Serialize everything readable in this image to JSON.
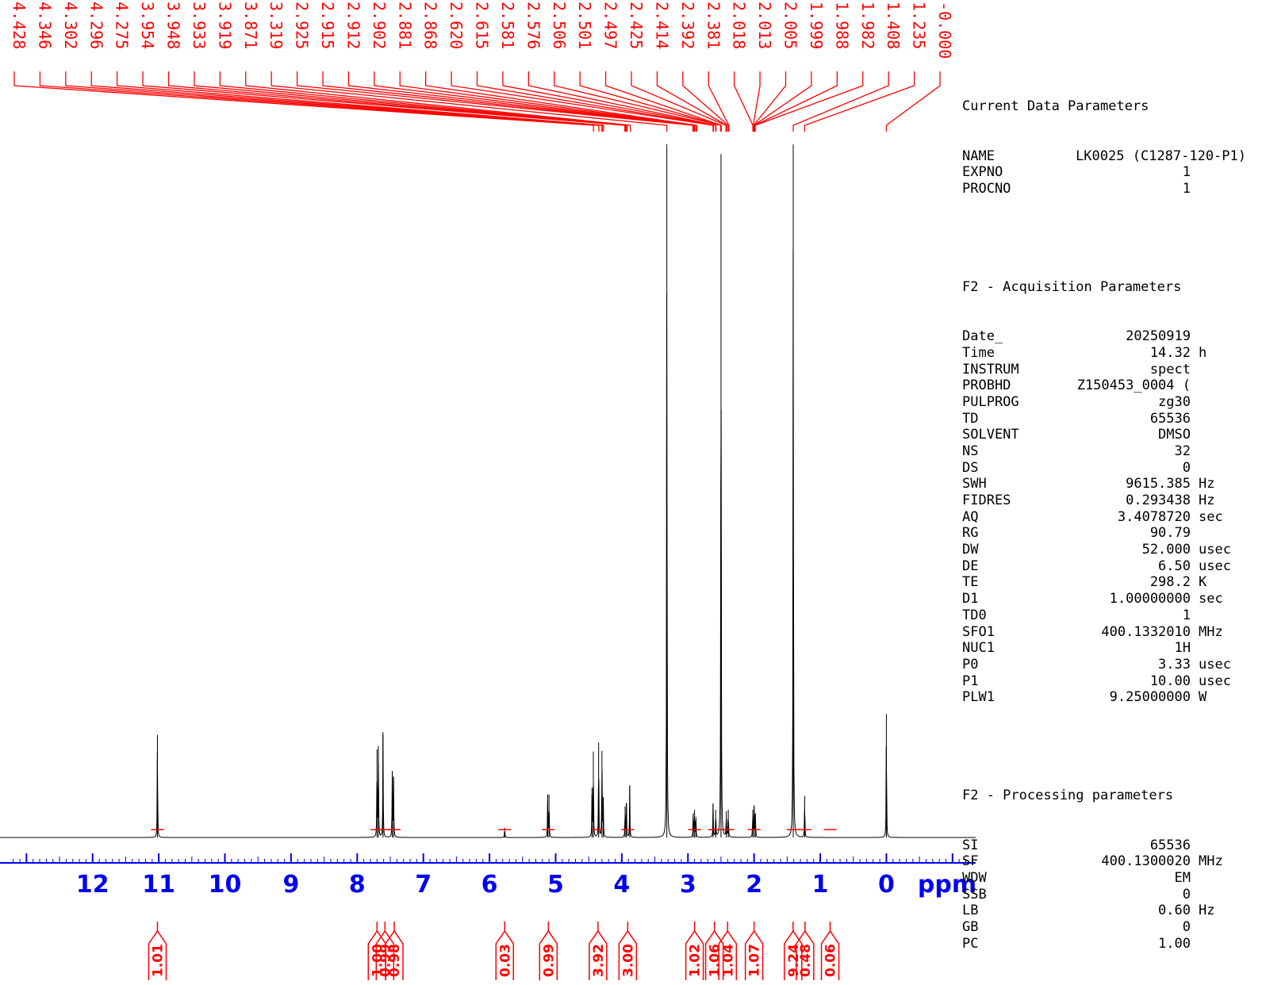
{
  "chart_data": {
    "type": "line",
    "xlabel": "ppm",
    "xlim": [
      13.4,
      -1.35
    ],
    "x_ticks": [
      12,
      11,
      10,
      9,
      8,
      7,
      6,
      5,
      4,
      3,
      2,
      1,
      0
    ],
    "peak_labels": [
      "4.428",
      "4.346",
      "4.302",
      "4.296",
      "4.275",
      "3.954",
      "3.948",
      "3.933",
      "3.919",
      "3.871",
      "3.319",
      "2.925",
      "2.915",
      "2.912",
      "2.902",
      "2.881",
      "2.868",
      "2.620",
      "2.615",
      "2.581",
      "2.576",
      "2.506",
      "2.501",
      "2.497",
      "2.425",
      "2.414",
      "2.392",
      "2.381",
      "2.018",
      "2.013",
      "2.005",
      "1.999",
      "1.988",
      "1.982",
      "1.408",
      "1.235",
      "-0.000"
    ],
    "peaks": [
      {
        "x": 11.02,
        "h": 0.148
      },
      {
        "x": 7.7,
        "h": 0.127
      },
      {
        "x": 7.68,
        "h": 0.132
      },
      {
        "x": 7.61,
        "h": 0.152
      },
      {
        "x": 7.47,
        "h": 0.096
      },
      {
        "x": 7.45,
        "h": 0.088
      },
      {
        "x": 5.77,
        "h": 0.014
      },
      {
        "x": 5.12,
        "h": 0.062
      },
      {
        "x": 5.1,
        "h": 0.062
      },
      {
        "x": 4.45,
        "h": 0.072
      },
      {
        "x": 4.43,
        "h": 0.124
      },
      {
        "x": 4.35,
        "h": 0.137
      },
      {
        "x": 4.3,
        "h": 0.125
      },
      {
        "x": 4.28,
        "h": 0.055
      },
      {
        "x": 3.95,
        "h": 0.045
      },
      {
        "x": 3.93,
        "h": 0.05
      },
      {
        "x": 3.88,
        "h": 0.075
      },
      {
        "x": 3.319,
        "h": 1.0
      },
      {
        "x": 2.92,
        "h": 0.035
      },
      {
        "x": 2.9,
        "h": 0.04
      },
      {
        "x": 2.88,
        "h": 0.03
      },
      {
        "x": 2.62,
        "h": 0.048
      },
      {
        "x": 2.58,
        "h": 0.04
      },
      {
        "x": 2.5,
        "h": 0.986
      },
      {
        "x": 2.42,
        "h": 0.038
      },
      {
        "x": 2.39,
        "h": 0.04
      },
      {
        "x": 2.02,
        "h": 0.04
      },
      {
        "x": 2.0,
        "h": 0.045
      },
      {
        "x": 1.98,
        "h": 0.035
      },
      {
        "x": 1.408,
        "h": 1.0
      },
      {
        "x": 1.235,
        "h": 0.06
      },
      {
        "x": 0.0,
        "h": 0.178
      }
    ],
    "integrals": [
      {
        "x": 11.02,
        "value": "1.01"
      },
      {
        "x": 7.7,
        "value": "1.00"
      },
      {
        "x": 7.58,
        "value": "0.99"
      },
      {
        "x": 7.44,
        "value": "0.98"
      },
      {
        "x": 5.77,
        "value": "0.03"
      },
      {
        "x": 5.11,
        "value": "0.99"
      },
      {
        "x": 4.36,
        "value": "3.92"
      },
      {
        "x": 3.91,
        "value": "3.00"
      },
      {
        "x": 2.9,
        "value": "1.02"
      },
      {
        "x": 2.6,
        "value": "1.06"
      },
      {
        "x": 2.4,
        "value": "1.04"
      },
      {
        "x": 2.0,
        "value": "1.07"
      },
      {
        "x": 1.41,
        "value": "9.24"
      },
      {
        "x": 1.23,
        "value": "0.48"
      },
      {
        "x": 0.85,
        "value": "0.06"
      }
    ]
  },
  "params": {
    "current": {
      "header": "Current Data Parameters",
      "rows": [
        {
          "name": "NAME",
          "value": "LK0025 (C1287-120-P1)",
          "unit": ""
        },
        {
          "name": "EXPNO",
          "value": "1",
          "unit": ""
        },
        {
          "name": "PROCNO",
          "value": "1",
          "unit": ""
        }
      ]
    },
    "acquisition": {
      "header": "F2 - Acquisition Parameters",
      "rows": [
        {
          "name": "Date_",
          "value": "20250919",
          "unit": ""
        },
        {
          "name": "Time",
          "value": "14.32",
          "unit": "h"
        },
        {
          "name": "INSTRUM",
          "value": "spect",
          "unit": ""
        },
        {
          "name": "PROBHD",
          "value": "Z150453_0004 (",
          "unit": ""
        },
        {
          "name": "PULPROG",
          "value": "zg30",
          "unit": ""
        },
        {
          "name": "TD",
          "value": "65536",
          "unit": ""
        },
        {
          "name": "SOLVENT",
          "value": "DMSO",
          "unit": ""
        },
        {
          "name": "NS",
          "value": "32",
          "unit": ""
        },
        {
          "name": "DS",
          "value": "0",
          "unit": ""
        },
        {
          "name": "SWH",
          "value": "9615.385",
          "unit": "Hz"
        },
        {
          "name": "FIDRES",
          "value": "0.293438",
          "unit": "Hz"
        },
        {
          "name": "AQ",
          "value": "3.4078720",
          "unit": "sec"
        },
        {
          "name": "RG",
          "value": "90.79",
          "unit": ""
        },
        {
          "name": "DW",
          "value": "52.000",
          "unit": "usec"
        },
        {
          "name": "DE",
          "value": "6.50",
          "unit": "usec"
        },
        {
          "name": "TE",
          "value": "298.2",
          "unit": "K"
        },
        {
          "name": "D1",
          "value": "1.00000000",
          "unit": "sec"
        },
        {
          "name": "TD0",
          "value": "1",
          "unit": ""
        },
        {
          "name": "SFO1",
          "value": "400.1332010",
          "unit": "MHz"
        },
        {
          "name": "NUC1",
          "value": "1H",
          "unit": ""
        },
        {
          "name": "P0",
          "value": "3.33",
          "unit": "usec"
        },
        {
          "name": "P1",
          "value": "10.00",
          "unit": "usec"
        },
        {
          "name": "PLW1",
          "value": "9.25000000",
          "unit": "W"
        }
      ]
    },
    "processing": {
      "header": "F2 - Processing parameters",
      "rows": [
        {
          "name": "SI",
          "value": "65536",
          "unit": ""
        },
        {
          "name": "SF",
          "value": "400.1300020",
          "unit": "MHz"
        },
        {
          "name": "WDW",
          "value": "EM",
          "unit": ""
        },
        {
          "name": "SSB",
          "value": "0",
          "unit": ""
        },
        {
          "name": "LB",
          "value": "0.60",
          "unit": "Hz"
        },
        {
          "name": "GB",
          "value": "0",
          "unit": ""
        },
        {
          "name": "PC",
          "value": "1.00",
          "unit": ""
        }
      ]
    }
  }
}
